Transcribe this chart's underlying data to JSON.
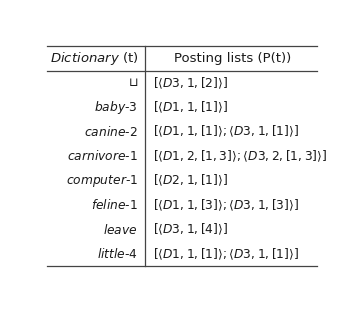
{
  "col1_header": "Dictionary (t)",
  "col2_header": "Posting lists (P(t))",
  "rows": [
    [
      "⊓",
      "$[\\langle D3, 1, [2]\\rangle]$"
    ],
    [
      "baby-3",
      "$[\\langle D1, 1, [1]\\rangle]$"
    ],
    [
      "canine-2",
      "$[\\langle D1, 1, [1]\\rangle; \\langle D3, 1, [1]\\rangle]$"
    ],
    [
      "carnivore-1",
      "$[\\langle D1, 2, [1,3]\\rangle; \\langle D3, 2, [1,3]\\rangle]$"
    ],
    [
      "computer-1",
      "$[\\langle D2, 1, [1]\\rangle]$"
    ],
    [
      "feline-1",
      "$[\\langle D1, 1, [3]\\rangle; \\langle D3, 1, [3]\\rangle]$"
    ],
    [
      "leave",
      "$[\\langle D3, 1, [4]\\rangle]$"
    ],
    [
      "little-4",
      "$[\\langle D1, 1, [1]\\rangle; \\langle D3, 1, [1]\\rangle]$"
    ]
  ],
  "col_split": 0.365,
  "bg_color": "#ffffff",
  "text_color": "#1a1a1a",
  "header_fontsize": 9.5,
  "row_fontsize": 8.8,
  "figsize": [
    3.55,
    3.1
  ],
  "dpi": 100
}
